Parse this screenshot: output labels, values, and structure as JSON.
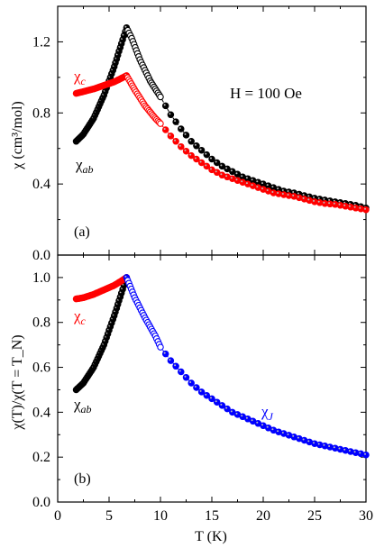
{
  "chart_data": [
    {
      "type": "scatter",
      "panel": "(a)",
      "xlabel": "",
      "ylabel": "χ (cm³/mol)",
      "xlim": [
        0,
        30
      ],
      "ylim": [
        0.0,
        1.4
      ],
      "xticks": [
        0,
        5,
        10,
        15,
        20,
        25,
        30
      ],
      "yticks": [
        0.0,
        0.4,
        0.8,
        1.2
      ],
      "ytick_labels": [
        "0.0",
        "0.4",
        "0.8",
        "1.2"
      ],
      "annotation": "H = 100 Oe",
      "grid": false,
      "series": [
        {
          "name": "χab",
          "label_main": "χ",
          "label_sub": "ab",
          "color": "#000000",
          "x": [
            1.8,
            2.5,
            3.5,
            4.5,
            5.5,
            6.2,
            6.7,
            7.2,
            8,
            9,
            10,
            11,
            12,
            13,
            14,
            15,
            16,
            17,
            18,
            19,
            20,
            21,
            22,
            23,
            24,
            25,
            26,
            27,
            28,
            29,
            30
          ],
          "y": [
            0.64,
            0.68,
            0.77,
            0.9,
            1.06,
            1.19,
            1.28,
            1.22,
            1.1,
            0.98,
            0.89,
            0.79,
            0.71,
            0.64,
            0.59,
            0.54,
            0.5,
            0.47,
            0.44,
            0.42,
            0.4,
            0.38,
            0.36,
            0.35,
            0.335,
            0.32,
            0.31,
            0.3,
            0.29,
            0.28,
            0.265
          ]
        },
        {
          "name": "χc",
          "label_main": "χ",
          "label_sub": "c",
          "color": "#ff0000",
          "x": [
            1.8,
            2.5,
            3.5,
            4.5,
            5.5,
            6.2,
            6.7,
            7.5,
            8.5,
            9.5,
            10,
            11,
            12,
            13,
            14,
            15,
            16,
            17,
            18,
            19,
            20,
            21,
            22,
            23,
            24,
            25,
            26,
            27,
            28,
            29,
            30
          ],
          "y": [
            0.91,
            0.92,
            0.935,
            0.955,
            0.975,
            0.995,
            1.01,
            0.93,
            0.84,
            0.77,
            0.74,
            0.67,
            0.61,
            0.56,
            0.52,
            0.48,
            0.45,
            0.43,
            0.41,
            0.39,
            0.37,
            0.35,
            0.34,
            0.33,
            0.315,
            0.3,
            0.29,
            0.285,
            0.275,
            0.265,
            0.255
          ]
        }
      ]
    },
    {
      "type": "scatter",
      "panel": "(b)",
      "xlabel": "T (K)",
      "ylabel": "χ(T)/χ(T = T_N)",
      "xlim": [
        0,
        30
      ],
      "ylim": [
        0.0,
        1.1
      ],
      "xticks": [
        0,
        5,
        10,
        15,
        20,
        25,
        30
      ],
      "yticks": [
        0.0,
        0.2,
        0.4,
        0.6,
        0.8,
        1.0
      ],
      "ytick_labels": [
        "0.0",
        "0.2",
        "0.4",
        "0.6",
        "0.8",
        "1.0"
      ],
      "grid": false,
      "series": [
        {
          "name": "χab",
          "label_main": "χ",
          "label_sub": "ab",
          "color": "#000000",
          "x": [
            1.8,
            2.5,
            3.5,
            4.5,
            5.5,
            6.2,
            6.7
          ],
          "y": [
            0.5,
            0.53,
            0.6,
            0.7,
            0.83,
            0.93,
            1.0
          ]
        },
        {
          "name": "χc",
          "label_main": "χ",
          "label_sub": "c",
          "color": "#ff0000",
          "x": [
            1.8,
            2.5,
            3.5,
            4.5,
            5.5,
            6.2,
            6.7
          ],
          "y": [
            0.905,
            0.91,
            0.925,
            0.945,
            0.965,
            0.985,
            1.0
          ]
        },
        {
          "name": "χJ",
          "label_main": "χ",
          "label_sub": "J",
          "color": "#0000ff",
          "x": [
            6.7,
            7.5,
            8.5,
            9.5,
            10,
            11,
            12,
            13,
            14,
            15,
            16,
            17,
            18,
            19,
            20,
            21,
            22,
            23,
            24,
            25,
            26,
            27,
            28,
            29,
            30
          ],
          "y": [
            1.0,
            0.91,
            0.82,
            0.74,
            0.69,
            0.63,
            0.58,
            0.53,
            0.49,
            0.46,
            0.43,
            0.4,
            0.38,
            0.36,
            0.34,
            0.32,
            0.305,
            0.29,
            0.275,
            0.26,
            0.25,
            0.24,
            0.23,
            0.22,
            0.21
          ]
        }
      ]
    }
  ]
}
